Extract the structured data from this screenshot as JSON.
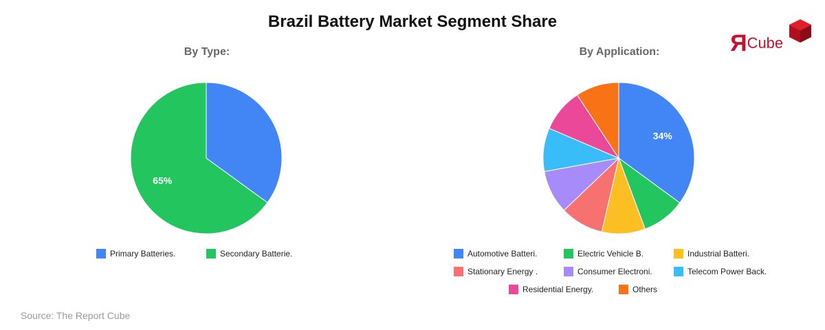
{
  "title": "Brazil Battery Market Segment Share",
  "source": "Source: The Report Cube",
  "logo": {
    "mark": "R",
    "text": "Cube",
    "color": "#c8102e"
  },
  "chart_data": [
    {
      "type": "pie",
      "title": "By Type:",
      "slices": [
        {
          "label": "Primary Batteries.",
          "value": 35,
          "color": "#4285f4"
        },
        {
          "label": "Secondary Batterie.",
          "value": 65,
          "color": "#22c55e"
        }
      ],
      "data_labels": [
        {
          "slice": 1,
          "text": "65%"
        }
      ]
    },
    {
      "type": "pie",
      "title": "By Application:",
      "slices": [
        {
          "label": "Automotive Batteri.",
          "value": 34,
          "color": "#4285f4"
        },
        {
          "label": "Electric Vehicle B.",
          "value": 9,
          "color": "#22c55e"
        },
        {
          "label": "Industrial Batteri.",
          "value": 9,
          "color": "#fbbf24"
        },
        {
          "label": "Stationary Energy .",
          "value": 9,
          "color": "#f87171"
        },
        {
          "label": "Consumer Electroni.",
          "value": 9,
          "color": "#a78bfa"
        },
        {
          "label": "Telecom Power Back.",
          "value": 9,
          "color": "#38bdf8"
        },
        {
          "label": "Residential Energy.",
          "value": 9,
          "color": "#ec4899"
        },
        {
          "label": "Others",
          "value": 9,
          "color": "#f97316"
        }
      ],
      "data_labels": [
        {
          "slice": 0,
          "text": "34%"
        }
      ]
    }
  ]
}
